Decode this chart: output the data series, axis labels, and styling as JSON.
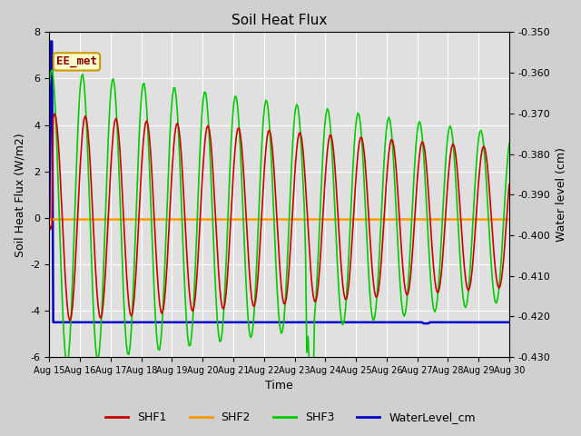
{
  "title": "Soil Heat Flux",
  "xlabel": "Time",
  "ylabel_left": "Soil Heat Flux (W/m2)",
  "ylabel_right": "Water level (cm)",
  "x_ticks": [
    "Aug 15",
    "Aug 16",
    "Aug 17",
    "Aug 18",
    "Aug 19",
    "Aug 20",
    "Aug 21",
    "Aug 22",
    "Aug 23",
    "Aug 24",
    "Aug 25",
    "Aug 26",
    "Aug 27",
    "Aug 28",
    "Aug 29",
    "Aug 30"
  ],
  "ylim_left": [
    -6,
    8
  ],
  "ylim_right": [
    -0.43,
    -0.35
  ],
  "yticks_left": [
    -6,
    -4,
    -2,
    0,
    2,
    4,
    6,
    8
  ],
  "yticks_right": [
    -0.43,
    -0.42,
    -0.41,
    -0.4,
    -0.39,
    -0.38,
    -0.37,
    -0.36,
    -0.35
  ],
  "plot_bg_color": "#e0e0e0",
  "fig_bg_color": "#d0d0d0",
  "shf1_color": "#cc0000",
  "shf2_color": "#ff9900",
  "shf3_color": "#00cc00",
  "wl_color": "#0000cc",
  "annotation_text": "EE_met",
  "annotation_color": "#8b0000",
  "annotation_bg": "#ffffcc",
  "annotation_border": "#cc9900",
  "grid_color": "#ffffff",
  "title_fontsize": 11,
  "label_fontsize": 9,
  "tick_fontsize": 8
}
